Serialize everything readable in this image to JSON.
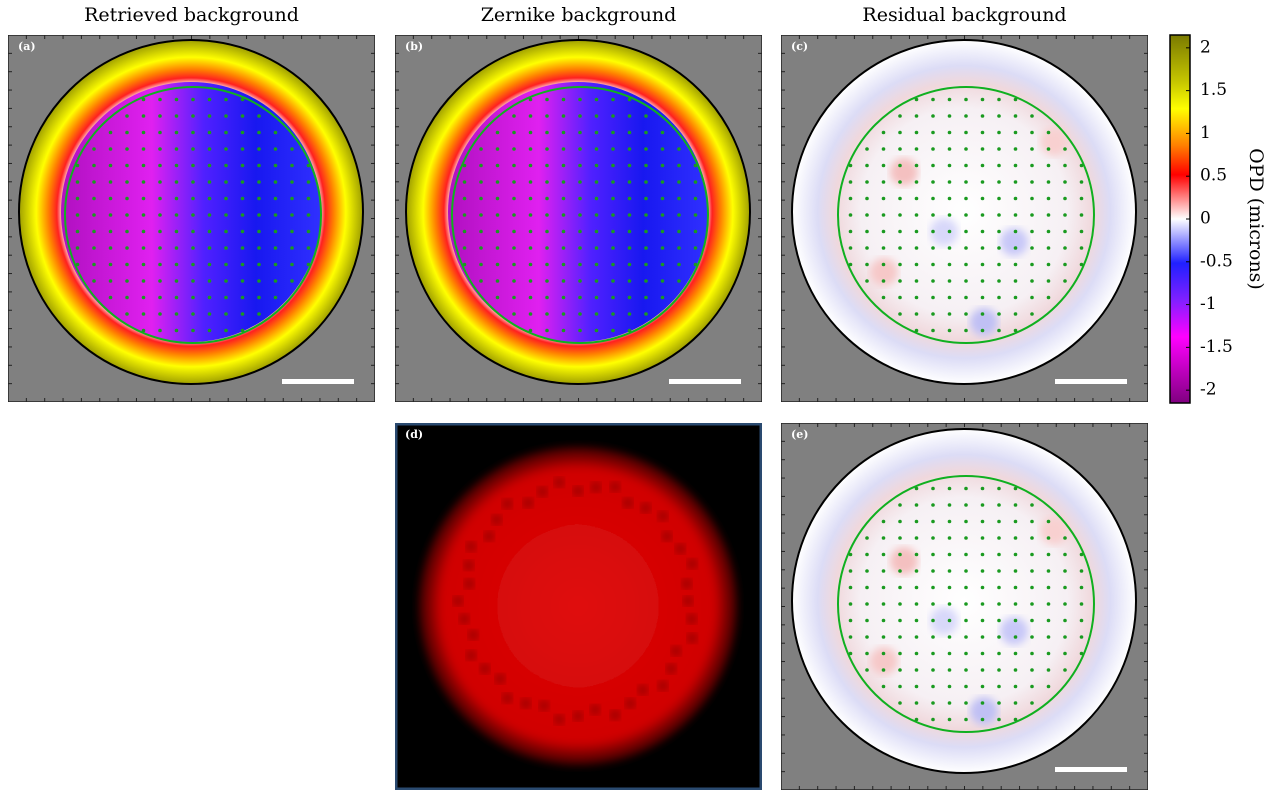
{
  "panels": [
    {
      "label": "(a)",
      "title": "Retrieved background"
    },
    {
      "label": "(b)",
      "title": "Zernike background"
    },
    {
      "label": "(c)",
      "title": "Residual background"
    },
    {
      "label": "(d)"
    },
    {
      "label": "(e)"
    }
  ],
  "colorbar": {
    "label": "OPD (microns)",
    "lim": [
      -2.15,
      2.15
    ],
    "ticks": [
      2,
      1.5,
      1,
      0.5,
      0,
      -0.5,
      -1,
      -1.5,
      -2
    ]
  }
}
